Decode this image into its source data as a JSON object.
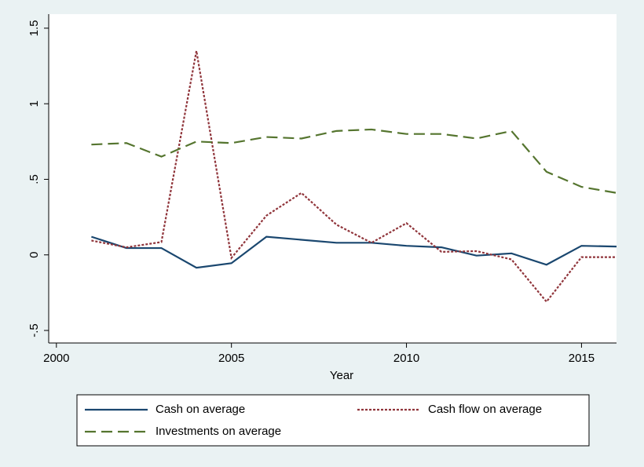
{
  "chart_data": {
    "type": "line",
    "x_label": "Year",
    "x": [
      2001,
      2002,
      2003,
      2004,
      2005,
      2006,
      2007,
      2008,
      2009,
      2010,
      2011,
      2012,
      2013,
      2014,
      2015,
      2016
    ],
    "series": [
      {
        "name": "Cash on average",
        "color": "#1a476f",
        "dash": "solid",
        "values": [
          0.12,
          0.045,
          0.045,
          -0.085,
          -0.055,
          0.12,
          0.1,
          0.08,
          0.08,
          0.06,
          0.05,
          -0.005,
          0.01,
          -0.065,
          0.06,
          0.055
        ]
      },
      {
        "name": "Cash flow on average",
        "color": "#90353b",
        "dash": "dotted",
        "values": [
          0.095,
          0.05,
          0.085,
          1.35,
          -0.02,
          0.26,
          0.41,
          0.2,
          0.08,
          0.21,
          0.02,
          0.025,
          -0.03,
          -0.31,
          -0.015,
          -0.015
        ]
      },
      {
        "name": "Investments on average",
        "color": "#55752f",
        "dash": "dashed",
        "values": [
          0.73,
          0.74,
          0.65,
          0.75,
          0.74,
          0.78,
          0.77,
          0.82,
          0.83,
          0.8,
          0.8,
          0.77,
          0.82,
          0.55,
          0.45,
          0.41
        ]
      }
    ],
    "xlim": [
      1999.78,
      2016.0
    ],
    "xticks": [
      2000,
      2005,
      2010,
      2015
    ],
    "ylim": [
      -0.583,
      1.593
    ],
    "yticks": [
      {
        "value": -0.5,
        "label": "-.5"
      },
      0,
      {
        "value": 0.5,
        "label": ".5"
      },
      1,
      1.5
    ],
    "grid": false,
    "legend": "bottom"
  }
}
